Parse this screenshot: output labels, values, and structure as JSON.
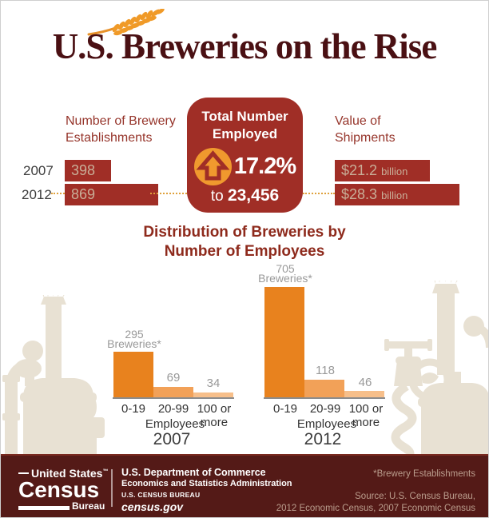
{
  "page": {
    "title": "U.S. Breweries on the Rise"
  },
  "colors": {
    "title_maroon": "#4A1013",
    "header_red": "#96352B",
    "bar_red": "#A02E26",
    "bar_text_tan": "#C9AE98",
    "accent_orange": "#F0992E",
    "dotted_orange": "#DFA13C",
    "beige_silhouette": "#E8E1D3",
    "footer_maroon": "#541A17",
    "footer_muted": "#BB9E8E",
    "gray_label": "#999999"
  },
  "stats": {
    "establishments": {
      "header_line1": "Number of Brewery",
      "header_line2": "Establishments"
    },
    "employment": {
      "header_line1": "Total Number",
      "header_line2": "Employed",
      "pct": "17.2%",
      "to": "to",
      "total": "23,456"
    },
    "shipments": {
      "header_line1": "Value of",
      "header_line2": "Shipments",
      "rows": [
        {
          "amount": "$21.2",
          "unit": "billion"
        },
        {
          "amount": "$28.3",
          "unit": "billion"
        }
      ]
    }
  },
  "distribution": {
    "header_line1": "Distribution of Breweries by",
    "header_line2": "Number of Employees",
    "annotation_suffix": "Breweries*"
  },
  "footer": {
    "logo_top": "United States",
    "logo_tm": "™",
    "logo_name": "Census",
    "logo_bottom": "Bureau",
    "dept_line1": "U.S. Department of Commerce",
    "dept_line2": "Economics and Statistics Administration",
    "dept_line3": "U.S. CENSUS BUREAU",
    "dept_line4": "census.gov",
    "note": "*Brewery Establishments",
    "source_line1": "Source: U.S. Census Bureau,",
    "source_line2": "2012 Economic Census, 2007 Economic Census"
  },
  "chart_data": [
    {
      "type": "bar",
      "orientation": "horizontal",
      "title": "Number of Brewery Establishments",
      "categories": [
        "2007",
        "2012"
      ],
      "values": [
        398,
        869
      ]
    },
    {
      "type": "stat",
      "title": "Total Number Employed",
      "change_percent": 17.2,
      "direction": "up",
      "value": 23456
    },
    {
      "type": "bar",
      "orientation": "horizontal",
      "title": "Value of Shipments",
      "unit": "billion USD",
      "categories": [
        "2007",
        "2012"
      ],
      "values": [
        21.2,
        28.3
      ],
      "value_labels": [
        "$21.2 billion",
        "$28.3 billion"
      ]
    },
    {
      "type": "bar",
      "title": "Distribution of Breweries by Number of Employees — 2007",
      "year": "2007",
      "categories": [
        "0-19",
        "20-99",
        "100 or more"
      ],
      "values": [
        295,
        69,
        34
      ],
      "xlabel": "Employees",
      "bar_colors": [
        "#E8821E",
        "#F2A158",
        "#F7BF8A"
      ],
      "annotation": "295 Breweries*"
    },
    {
      "type": "bar",
      "title": "Distribution of Breweries by Number of Employees — 2012",
      "year": "2012",
      "categories": [
        "0-19",
        "20-99",
        "100 or more"
      ],
      "values": [
        705,
        118,
        46
      ],
      "xlabel": "Employees",
      "bar_colors": [
        "#E8821E",
        "#F2A158",
        "#F7BF8A"
      ],
      "annotation": "705 Breweries*"
    }
  ]
}
